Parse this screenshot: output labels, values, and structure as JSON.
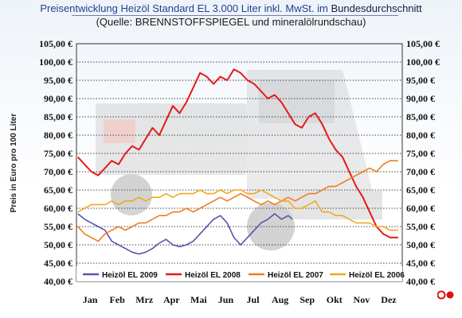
{
  "header": {
    "title_main": "Preisentwicklung Heizöl Standard EL 3.000 Liter inkl. MwSt. im",
    "title_end": "Bundesdurchschnitt",
    "subtitle": "(Quelle: BRENNSTOFFSPIEGEL und mineralölrundschau)"
  },
  "colors": {
    "series_2009": "#5555b0",
    "series_2008": "#e41a1a",
    "series_2007": "#f07d1e",
    "series_2006": "#f2a81e",
    "grid": "#444444"
  },
  "chart_data": {
    "type": "line",
    "ylabel": "Preis in Euro pro 100 Liter",
    "ylim": [
      40,
      105
    ],
    "yticks": [
      "40,00 €",
      "45,00 €",
      "50,00 €",
      "55,00 €",
      "60,00 €",
      "65,00 €",
      "70,00 €",
      "75,00 €",
      "80,00 €",
      "85,00 €",
      "90,00 €",
      "95,00 €",
      "100,00 €",
      "105,00 €"
    ],
    "categories": [
      "Jan",
      "Feb",
      "Mrz",
      "Apr",
      "Mai",
      "Jun",
      "Jul",
      "Aug",
      "Sep",
      "Okt",
      "Nov",
      "Dez"
    ],
    "grid": "dotted horizontal",
    "legend": "bottom",
    "series": [
      {
        "name": "Heizöl EL 2009",
        "color": "#5555b0",
        "x": [
          0,
          0.25,
          0.5,
          0.75,
          1,
          1.25,
          1.5,
          1.75,
          2,
          2.25,
          2.5,
          2.75,
          3,
          3.25,
          3.5,
          3.75,
          4,
          4.25,
          4.5,
          4.75,
          5,
          5.25,
          5.5,
          5.75,
          6,
          6.25,
          6.5,
          6.75,
          7,
          7.25,
          7.5,
          7.75,
          7.9
        ],
        "values": [
          58.5,
          57,
          56,
          55,
          54,
          51,
          50,
          49,
          48,
          47.5,
          48,
          49,
          50.5,
          51.5,
          50,
          49.5,
          50,
          51,
          53,
          55,
          57,
          58,
          56,
          52,
          50,
          52,
          54,
          56,
          57,
          58.5,
          57,
          58,
          57
        ]
      },
      {
        "name": "Heizöl EL 2008",
        "color": "#e41a1a",
        "x": [
          0,
          0.25,
          0.5,
          0.75,
          1,
          1.25,
          1.5,
          1.75,
          2,
          2.25,
          2.5,
          2.75,
          3,
          3.25,
          3.5,
          3.75,
          4,
          4.25,
          4.5,
          4.75,
          5,
          5.25,
          5.5,
          5.75,
          6,
          6.25,
          6.5,
          6.75,
          7,
          7.25,
          7.5,
          7.75,
          8,
          8.25,
          8.5,
          8.75,
          9,
          9.25,
          9.5,
          9.75,
          10,
          10.25,
          10.5,
          10.75,
          11,
          11.25,
          11.5,
          11.8
        ],
        "values": [
          74,
          72,
          70,
          69,
          71,
          73,
          72,
          75,
          77,
          76,
          79,
          82,
          80,
          84,
          88,
          86,
          89,
          93,
          97,
          96,
          94,
          96,
          95,
          98,
          97,
          95,
          94,
          92,
          90,
          91,
          89,
          86,
          83,
          82,
          85,
          86,
          83,
          79,
          76,
          74,
          70,
          66,
          63,
          59,
          55,
          53,
          52,
          52
        ]
      },
      {
        "name": "Heizöl EL 2007",
        "color": "#f07d1e",
        "x": [
          0,
          0.25,
          0.5,
          0.75,
          1,
          1.25,
          1.5,
          1.75,
          2,
          2.25,
          2.5,
          2.75,
          3,
          3.25,
          3.5,
          3.75,
          4,
          4.25,
          4.5,
          4.75,
          5,
          5.25,
          5.5,
          5.75,
          6,
          6.25,
          6.5,
          6.75,
          7,
          7.25,
          7.5,
          7.75,
          8,
          8.25,
          8.5,
          8.75,
          9,
          9.25,
          9.5,
          9.75,
          10,
          10.25,
          10.5,
          10.75,
          11,
          11.25,
          11.5,
          11.8
        ],
        "values": [
          55,
          53,
          52,
          51,
          53,
          54,
          55,
          54,
          55,
          56,
          56,
          57,
          58,
          58,
          59,
          59,
          60,
          59,
          60,
          61,
          62,
          63,
          62,
          63,
          64,
          63,
          62,
          61,
          62,
          61,
          62,
          63,
          62,
          63,
          64,
          64,
          65,
          66,
          66,
          67,
          68,
          69,
          70,
          71,
          70,
          72,
          73,
          73
        ]
      },
      {
        "name": "Heizöl EL 2006",
        "color": "#f2a81e",
        "x": [
          0,
          0.25,
          0.5,
          0.75,
          1,
          1.25,
          1.5,
          1.75,
          2,
          2.25,
          2.5,
          2.75,
          3,
          3.25,
          3.5,
          3.75,
          4,
          4.25,
          4.5,
          4.75,
          5,
          5.25,
          5.5,
          5.75,
          6,
          6.25,
          6.5,
          6.75,
          7,
          7.25,
          7.5,
          7.75,
          8,
          8.25,
          8.5,
          8.75,
          9,
          9.25,
          9.5,
          9.75,
          10,
          10.25,
          10.5,
          10.75,
          11,
          11.25,
          11.5,
          11.8
        ],
        "values": [
          59,
          60,
          61,
          61,
          61,
          62,
          61,
          62,
          62,
          63,
          62,
          63,
          63,
          64,
          63,
          64,
          64,
          64,
          65,
          64,
          64,
          65,
          64,
          65,
          65,
          64,
          64,
          65,
          64,
          63,
          62,
          62,
          60,
          60,
          61,
          62,
          59,
          59,
          58,
          58,
          57,
          56,
          56,
          56,
          55,
          55,
          54,
          54
        ]
      }
    ]
  }
}
